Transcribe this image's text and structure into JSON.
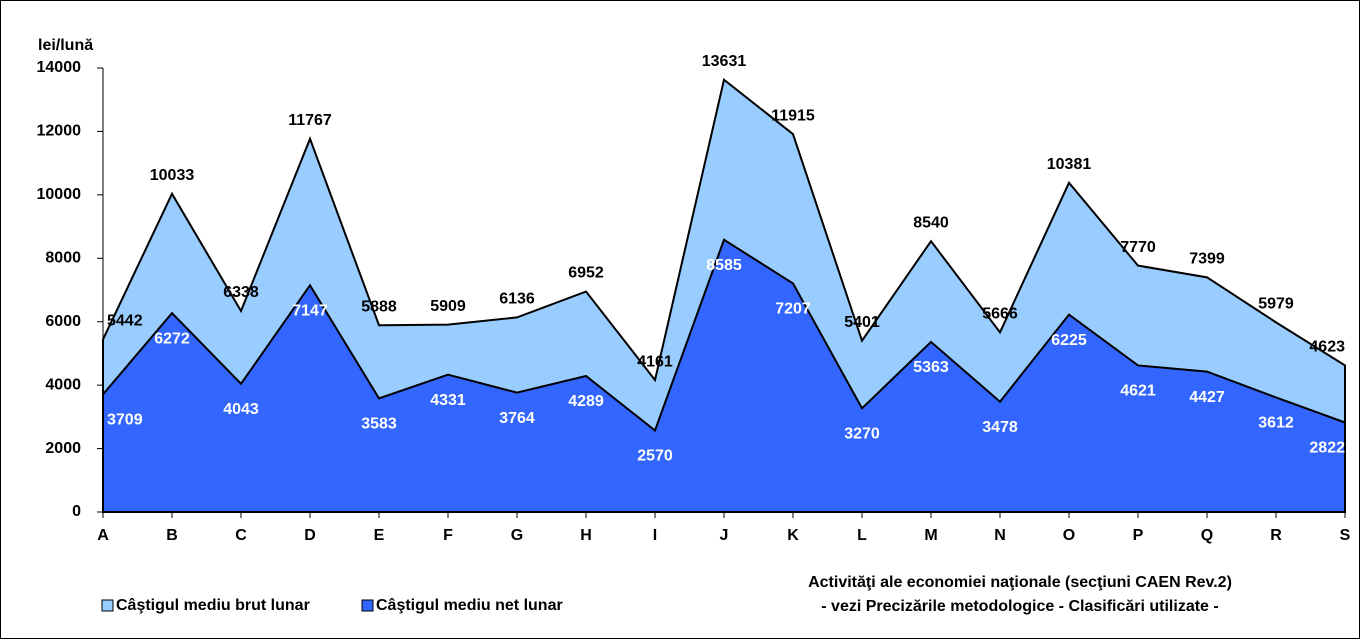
{
  "chart_data": {
    "type": "area",
    "y_label": "lei/lună",
    "x_label": [
      "Activităţi ale economiei naţionale (secţiuni CAEN Rev.2)",
      "- vezi Precizările metodologice - Clasificări utilizate -"
    ],
    "categories": [
      "A",
      "B",
      "C",
      "D",
      "E",
      "F",
      "G",
      "H",
      "I",
      "J",
      "K",
      "L",
      "M",
      "N",
      "O",
      "P",
      "Q",
      "R",
      "S"
    ],
    "series": [
      {
        "name": "Câştigul mediu brut lunar",
        "color": "#99ccff",
        "label_color": "#000000",
        "values": [
          5442,
          10033,
          6338,
          11767,
          5888,
          5909,
          6136,
          6952,
          4161,
          13631,
          11915,
          5401,
          8540,
          5666,
          10381,
          7770,
          7399,
          5979,
          4623
        ]
      },
      {
        "name": "Câştigul mediu net lunar",
        "color": "#3366ff",
        "label_color": "#ffffff",
        "values": [
          3709,
          6272,
          4043,
          7147,
          3583,
          4331,
          3764,
          4289,
          2570,
          8585,
          7207,
          3270,
          5363,
          3478,
          6225,
          4621,
          4427,
          3612,
          2822
        ]
      }
    ],
    "ylim": [
      0,
      14000
    ],
    "yticks": [
      0,
      2000,
      4000,
      6000,
      8000,
      10000,
      12000,
      14000
    ]
  }
}
